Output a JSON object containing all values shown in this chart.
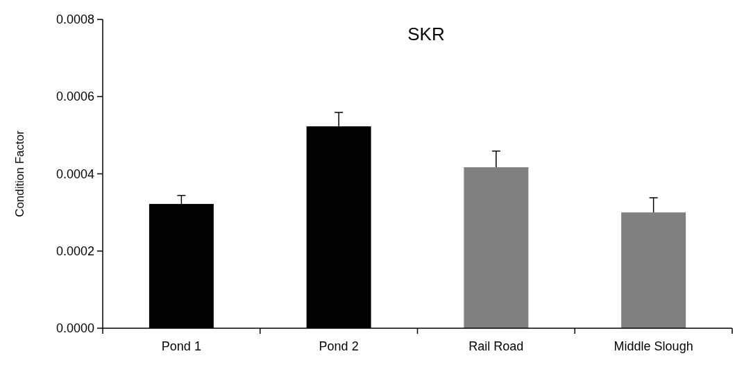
{
  "chart_data": {
    "type": "bar",
    "title": "SKR",
    "ylabel": "Condition Factor",
    "categories": [
      "Pond 1",
      "Pond 2",
      "Rail Road",
      "Middle Slough"
    ],
    "values": [
      0.000322,
      0.000523,
      0.000417,
      0.0003
    ],
    "colors": [
      "#000000",
      "#000000",
      "#808080",
      "#808080"
    ],
    "errors": [
      2.2e-05,
      3.6e-05,
      4.2e-05,
      3.8e-05
    ],
    "ylim": [
      0,
      0.0008
    ],
    "yticks": [
      {
        "value": 0,
        "label": "0.0000"
      },
      {
        "value": 0.0002,
        "label": "0.0002"
      },
      {
        "value": 0.0004,
        "label": "0.0004"
      },
      {
        "value": 0.0006,
        "label": "0.0006"
      },
      {
        "value": 0.0008,
        "label": "0.0008"
      }
    ],
    "grid": false
  }
}
